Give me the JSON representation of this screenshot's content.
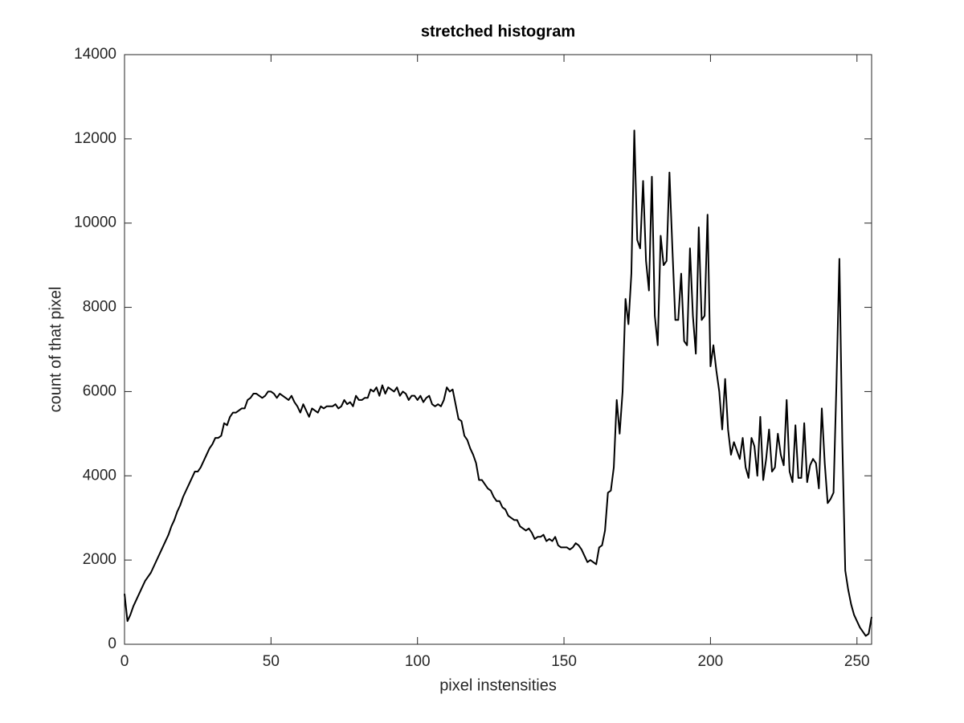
{
  "chart_data": {
    "type": "line",
    "title": "stretched histogram",
    "x_label": "pixel instensities",
    "y_label": "count of that pixel",
    "x": [
      0,
      1,
      2,
      3,
      4,
      5,
      6,
      7,
      8,
      9,
      10,
      11,
      12,
      13,
      14,
      15,
      16,
      17,
      18,
      19,
      20,
      21,
      22,
      23,
      24,
      25,
      26,
      27,
      28,
      29,
      30,
      31,
      32,
      33,
      34,
      35,
      36,
      37,
      38,
      39,
      40,
      41,
      42,
      43,
      44,
      45,
      46,
      47,
      48,
      49,
      50,
      51,
      52,
      53,
      54,
      55,
      56,
      57,
      58,
      59,
      60,
      61,
      62,
      63,
      64,
      65,
      66,
      67,
      68,
      69,
      70,
      71,
      72,
      73,
      74,
      75,
      76,
      77,
      78,
      79,
      80,
      81,
      82,
      83,
      84,
      85,
      86,
      87,
      88,
      89,
      90,
      91,
      92,
      93,
      94,
      95,
      96,
      97,
      98,
      99,
      100,
      101,
      102,
      103,
      104,
      105,
      106,
      107,
      108,
      109,
      110,
      111,
      112,
      113,
      114,
      115,
      116,
      117,
      118,
      119,
      120,
      121,
      122,
      123,
      124,
      125,
      126,
      127,
      128,
      129,
      130,
      131,
      132,
      133,
      134,
      135,
      136,
      137,
      138,
      139,
      140,
      141,
      142,
      143,
      144,
      145,
      146,
      147,
      148,
      149,
      150,
      151,
      152,
      153,
      154,
      155,
      156,
      157,
      158,
      159,
      160,
      161,
      162,
      163,
      164,
      165,
      166,
      167,
      168,
      169,
      170,
      171,
      172,
      173,
      174,
      175,
      176,
      177,
      178,
      179,
      180,
      181,
      182,
      183,
      184,
      185,
      186,
      187,
      188,
      189,
      190,
      191,
      192,
      193,
      194,
      195,
      196,
      197,
      198,
      199,
      200,
      201,
      202,
      203,
      204,
      205,
      206,
      207,
      208,
      209,
      210,
      211,
      212,
      213,
      214,
      215,
      216,
      217,
      218,
      219,
      220,
      221,
      222,
      223,
      224,
      225,
      226,
      227,
      228,
      229,
      230,
      231,
      232,
      233,
      234,
      235,
      236,
      237,
      238,
      239,
      240,
      241,
      242,
      243,
      244,
      245,
      246,
      247,
      248,
      249,
      250,
      251,
      252,
      253,
      254,
      255
    ],
    "values": [
      1200,
      550,
      700,
      900,
      1050,
      1200,
      1350,
      1500,
      1600,
      1700,
      1850,
      2000,
      2150,
      2300,
      2450,
      2600,
      2800,
      2950,
      3150,
      3300,
      3500,
      3650,
      3800,
      3950,
      4100,
      4100,
      4200,
      4350,
      4500,
      4650,
      4750,
      4900,
      4900,
      4950,
      5250,
      5200,
      5400,
      5500,
      5500,
      5550,
      5600,
      5600,
      5800,
      5850,
      5950,
      5950,
      5900,
      5850,
      5900,
      6000,
      6000,
      5950,
      5850,
      5950,
      5900,
      5850,
      5800,
      5900,
      5750,
      5650,
      5500,
      5700,
      5550,
      5400,
      5600,
      5550,
      5500,
      5650,
      5600,
      5650,
      5650,
      5650,
      5700,
      5600,
      5650,
      5800,
      5700,
      5750,
      5650,
      5900,
      5800,
      5800,
      5850,
      5850,
      6050,
      6000,
      6100,
      5900,
      6150,
      5950,
      6100,
      6050,
      6000,
      6100,
      5900,
      6000,
      5950,
      5800,
      5900,
      5900,
      5800,
      5900,
      5750,
      5850,
      5900,
      5700,
      5650,
      5700,
      5650,
      5800,
      6100,
      6000,
      6050,
      5700,
      5350,
      5300,
      4950,
      4850,
      4650,
      4500,
      4300,
      3900,
      3900,
      3800,
      3700,
      3650,
      3500,
      3400,
      3400,
      3250,
      3200,
      3050,
      3000,
      2950,
      2950,
      2800,
      2750,
      2700,
      2750,
      2650,
      2500,
      2550,
      2550,
      2600,
      2450,
      2500,
      2450,
      2550,
      2350,
      2300,
      2300,
      2300,
      2250,
      2300,
      2400,
      2350,
      2250,
      2100,
      1950,
      2000,
      1950,
      1900,
      2300,
      2350,
      2700,
      3600,
      3650,
      4200,
      5800,
      5000,
      6000,
      8200,
      7600,
      8800,
      12200,
      9600,
      9400,
      11000,
      9100,
      8400,
      11100,
      7800,
      7100,
      9700,
      9000,
      9100,
      11200,
      9400,
      7700,
      7700,
      8800,
      7200,
      7100,
      9400,
      7800,
      6900,
      9900,
      7700,
      7800,
      10200,
      6600,
      7100,
      6500,
      6000,
      5100,
      6300,
      5100,
      4500,
      4800,
      4600,
      4400,
      4900,
      4200,
      3950,
      4900,
      4700,
      4000,
      5400,
      3900,
      4400,
      5100,
      4100,
      4200,
      5000,
      4500,
      4250,
      5800,
      4100,
      3850,
      5200,
      3950,
      3950,
      5250,
      3850,
      4250,
      4400,
      4300,
      3700,
      5600,
      4300,
      3350,
      3450,
      3600,
      6200,
      9150,
      4800,
      1750,
      1300,
      950,
      700,
      550,
      400,
      300,
      200,
      250,
      650
    ],
    "color": "#000000",
    "xlim": [
      0,
      255
    ],
    "xticks": [
      0,
      50,
      100,
      150,
      200,
      250
    ],
    "ylim": [
      0,
      14000
    ],
    "yticks": [
      0,
      2000,
      4000,
      6000,
      8000,
      10000,
      12000,
      14000
    ],
    "grid": false
  }
}
